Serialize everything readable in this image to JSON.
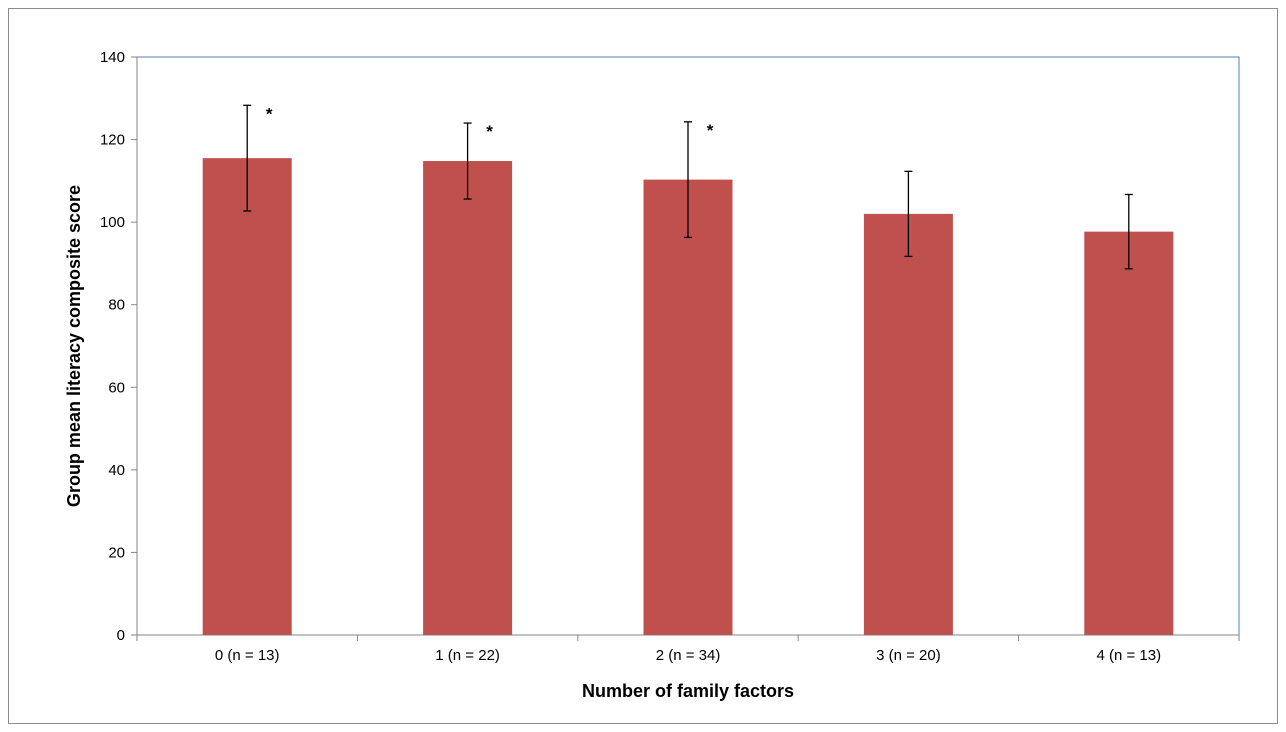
{
  "chart_data": {
    "type": "bar",
    "xlabel": "Number of family factors",
    "ylabel": "Group mean literacy composite score",
    "ylim": [
      0,
      140
    ],
    "yticks": [
      0,
      20,
      40,
      60,
      80,
      100,
      120,
      140
    ],
    "categories": [
      "0 (n = 13)",
      "1 (n = 22)",
      "2 (n = 34)",
      "3 (n = 20)",
      "4 (n = 13)"
    ],
    "values": [
      115.5,
      114.8,
      110.3,
      102.0,
      97.7
    ],
    "error": [
      12.8,
      9.2,
      14.0,
      10.3,
      9.0
    ],
    "annotations": [
      "*",
      "*",
      "*",
      "",
      ""
    ],
    "grid": false,
    "bar_color": "#c0504d",
    "plot_border_color": "#4f81bd",
    "axis_color": "#868686"
  }
}
